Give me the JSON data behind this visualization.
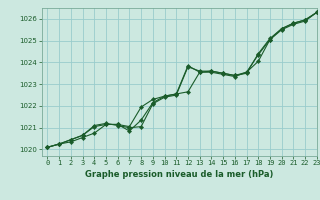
{
  "title": "Graphe pression niveau de la mer (hPa)",
  "bg_color": "#cce8e0",
  "grid_color": "#99cccc",
  "line_color": "#1a5c2a",
  "xlim": [
    -0.5,
    23
  ],
  "ylim": [
    1019.7,
    1026.5
  ],
  "yticks": [
    1020,
    1021,
    1022,
    1023,
    1024,
    1025,
    1026
  ],
  "xticks": [
    0,
    1,
    2,
    3,
    4,
    5,
    6,
    7,
    8,
    9,
    10,
    11,
    12,
    13,
    14,
    15,
    16,
    17,
    18,
    19,
    20,
    21,
    22,
    23
  ],
  "line1_x": [
    0,
    1,
    2,
    3,
    4,
    5,
    6,
    7,
    8,
    9,
    10,
    11,
    12,
    13,
    14,
    15,
    16,
    17,
    18,
    19,
    20,
    21,
    22,
    23
  ],
  "line1_y": [
    1020.1,
    1020.25,
    1020.35,
    1020.55,
    1020.75,
    1021.15,
    1021.15,
    1020.85,
    1021.35,
    1022.15,
    1022.45,
    1022.55,
    1023.85,
    1023.55,
    1023.6,
    1023.5,
    1023.4,
    1023.55,
    1024.05,
    1025.05,
    1025.55,
    1025.8,
    1025.95,
    1026.3
  ],
  "line2_x": [
    0,
    1,
    2,
    3,
    4,
    5,
    6,
    7,
    8,
    9,
    10,
    11,
    12,
    13,
    14,
    15,
    16,
    17,
    18,
    19,
    20,
    21,
    22,
    23
  ],
  "line2_y": [
    1020.1,
    1020.25,
    1020.45,
    1020.65,
    1021.05,
    1021.15,
    1021.15,
    1021.05,
    1021.95,
    1022.3,
    1022.45,
    1022.55,
    1022.65,
    1023.55,
    1023.55,
    1023.45,
    1023.35,
    1023.55,
    1024.35,
    1025.05,
    1025.5,
    1025.75,
    1025.9,
    1026.3
  ],
  "line3_x": [
    0,
    1,
    2,
    3,
    4,
    5,
    6,
    7,
    8,
    9,
    10,
    11,
    12,
    13,
    14,
    15,
    16,
    17,
    18,
    19,
    20,
    21,
    22,
    23
  ],
  "line3_y": [
    1020.1,
    1020.25,
    1020.45,
    1020.65,
    1021.1,
    1021.2,
    1021.1,
    1021.0,
    1021.05,
    1022.1,
    1022.4,
    1022.5,
    1023.8,
    1023.6,
    1023.6,
    1023.5,
    1023.4,
    1023.5,
    1024.4,
    1025.1,
    1025.55,
    1025.8,
    1025.95,
    1026.3
  ],
  "xlabel_fontsize": 6.0,
  "tick_fontsize": 5.0,
  "linewidth": 0.8,
  "markersize": 2.2
}
